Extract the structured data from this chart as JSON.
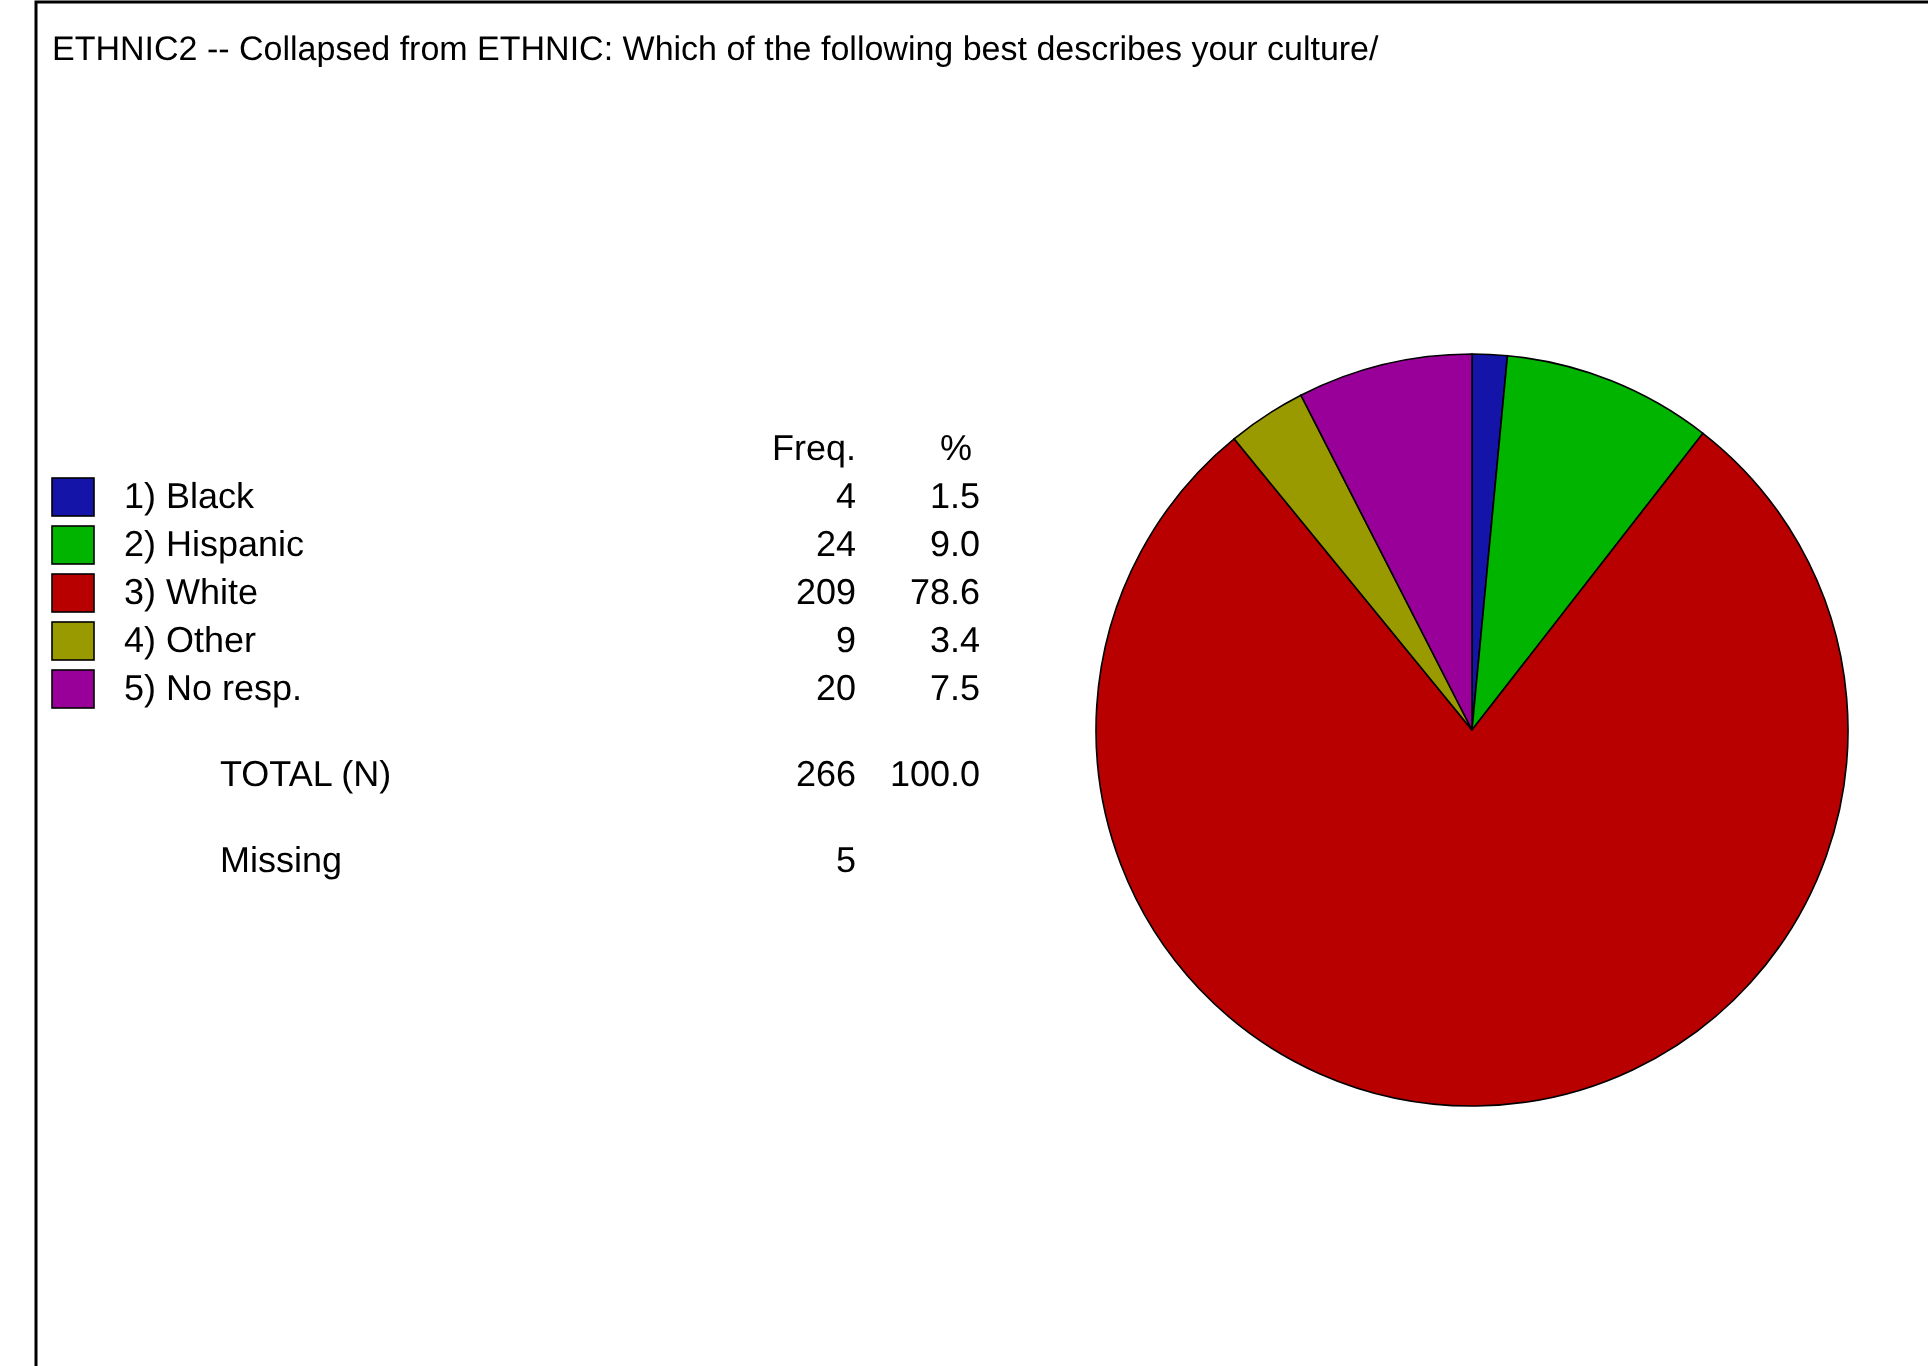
{
  "chart_data": {
    "type": "pie",
    "title": "ETHNIC2 -- Collapsed from ETHNIC: Which of the following best describes your culture/",
    "categories": [
      "1) Black",
      "2) Hispanic",
      "3) White",
      "4) Other",
      "5) No resp."
    ],
    "values": [
      4,
      24,
      209,
      9,
      20
    ],
    "colors": [
      "#1414a8",
      "#00b400",
      "#b80000",
      "#999900",
      "#990099"
    ],
    "data_labels": true,
    "legend": "left",
    "annotations": [
      "Freq.",
      "%",
      "1.5",
      "9.0",
      "78.6",
      "3.4",
      "7.5",
      "TOTAL  (N)",
      "266",
      "100.0",
      "Missing",
      "5"
    ]
  }
}
